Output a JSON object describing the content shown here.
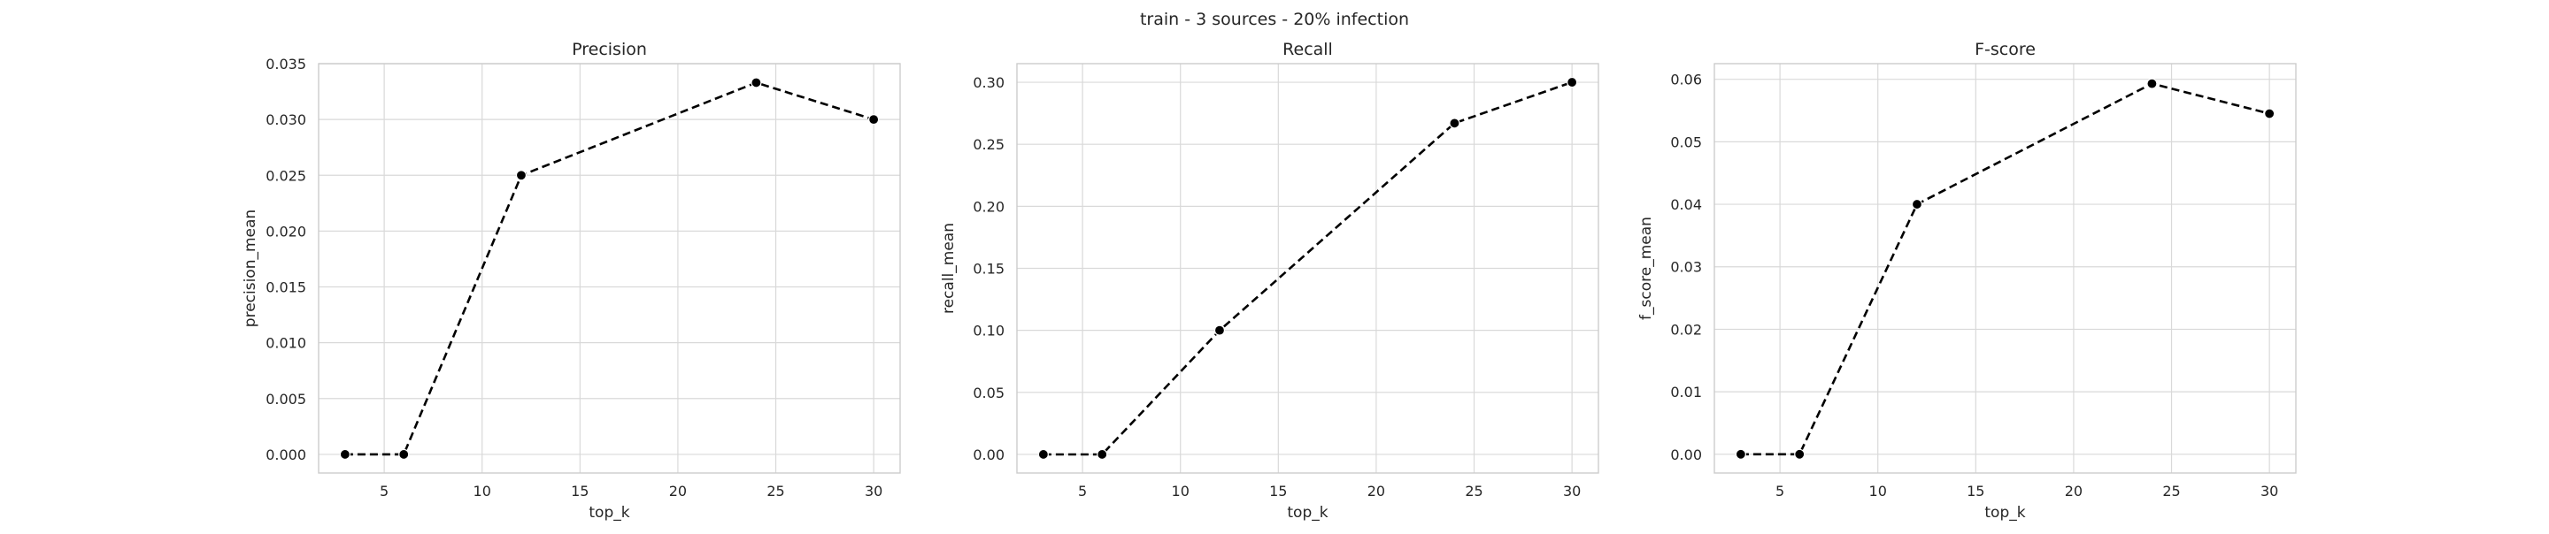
{
  "figure": {
    "suptitle": "train - 3 sources - 20% infection"
  },
  "chart_data": [
    {
      "type": "line",
      "title": "Precision",
      "xlabel": "top_k",
      "ylabel": "precision_mean",
      "xlim": [
        1.65,
        31.35
      ],
      "ylim": [
        -0.00167,
        0.035
      ],
      "xticks": [
        5,
        10,
        15,
        20,
        25,
        30
      ],
      "xtick_labels": [
        "5",
        "10",
        "15",
        "20",
        "25",
        "30"
      ],
      "yticks": [
        0,
        0.005,
        0.01,
        0.015,
        0.02,
        0.025,
        0.03,
        0.035
      ],
      "ytick_labels": [
        "0.000",
        "0.005",
        "0.010",
        "0.015",
        "0.020",
        "0.025",
        "0.030",
        "0.035"
      ],
      "grid": true,
      "line_style": "dashed",
      "marker": "circle",
      "color": "#000000",
      "x": [
        3,
        6,
        12,
        24,
        30
      ],
      "y": [
        0.0,
        0.0,
        0.025,
        0.0333,
        0.03
      ]
    },
    {
      "type": "line",
      "title": "Recall",
      "xlabel": "top_k",
      "ylabel": "recall_mean",
      "xlim": [
        1.65,
        31.35
      ],
      "ylim": [
        -0.015,
        0.315
      ],
      "xticks": [
        5,
        10,
        15,
        20,
        25,
        30
      ],
      "xtick_labels": [
        "5",
        "10",
        "15",
        "20",
        "25",
        "30"
      ],
      "yticks": [
        0,
        0.05,
        0.1,
        0.15,
        0.2,
        0.25,
        0.3
      ],
      "ytick_labels": [
        "0.00",
        "0.05",
        "0.10",
        "0.15",
        "0.20",
        "0.25",
        "0.30"
      ],
      "grid": true,
      "line_style": "dashed",
      "marker": "circle",
      "color": "#000000",
      "x": [
        3,
        6,
        12,
        24,
        30
      ],
      "y": [
        0.0,
        0.0,
        0.1,
        0.267,
        0.3
      ]
    },
    {
      "type": "line",
      "title": "F-score",
      "xlabel": "top_k",
      "ylabel": "f_score_mean",
      "xlim": [
        1.65,
        31.35
      ],
      "ylim": [
        -0.003,
        0.0625
      ],
      "xticks": [
        5,
        10,
        15,
        20,
        25,
        30
      ],
      "xtick_labels": [
        "5",
        "10",
        "15",
        "20",
        "25",
        "30"
      ],
      "yticks": [
        0,
        0.01,
        0.02,
        0.03,
        0.04,
        0.05,
        0.06
      ],
      "ytick_labels": [
        "0.00",
        "0.01",
        "0.02",
        "0.03",
        "0.04",
        "0.05",
        "0.06"
      ],
      "grid": true,
      "line_style": "dashed",
      "marker": "circle",
      "color": "#000000",
      "x": [
        3,
        6,
        12,
        24,
        30
      ],
      "y": [
        0.0,
        0.0,
        0.04,
        0.0593,
        0.0545
      ]
    }
  ]
}
